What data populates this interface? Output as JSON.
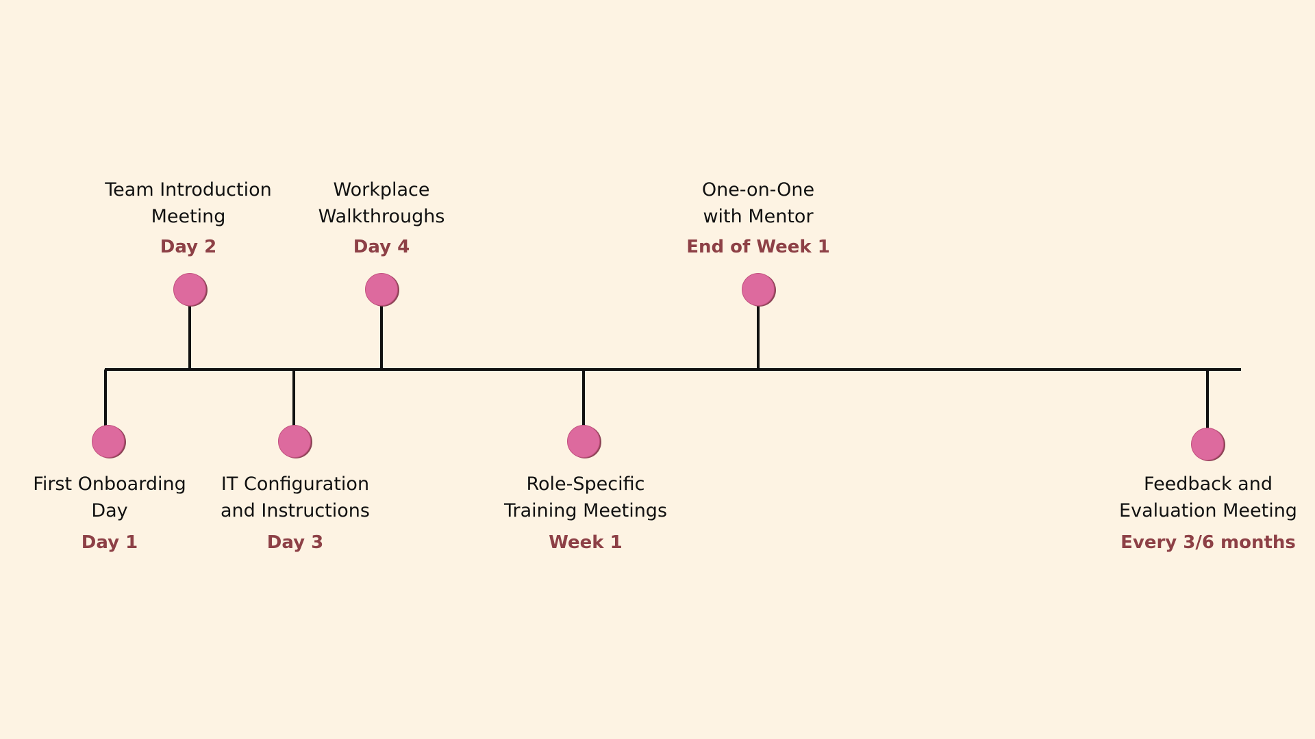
{
  "colors": {
    "background": "#fdf3e3",
    "line": "#111111",
    "marker": "#dd6a9e",
    "marker_outline": "#8d4457",
    "time_text": "#8d4046"
  },
  "milestones": [
    {
      "label": "First Onboarding\nDay",
      "time": "Day 1"
    },
    {
      "label": "Team Introduction\nMeeting",
      "time": "Day 2"
    },
    {
      "label": "IT Configuration\nand Instructions",
      "time": "Day 3"
    },
    {
      "label": "Workplace\nWalkthroughs",
      "time": "Day 4"
    },
    {
      "label": "Role-Specific\nTraining Meetings",
      "time": "Week 1"
    },
    {
      "label": "One-on-One\nwith Mentor",
      "time": "End of Week 1"
    },
    {
      "label": "Feedback and\nEvaluation Meeting",
      "time": "Every 3/6 months"
    }
  ]
}
